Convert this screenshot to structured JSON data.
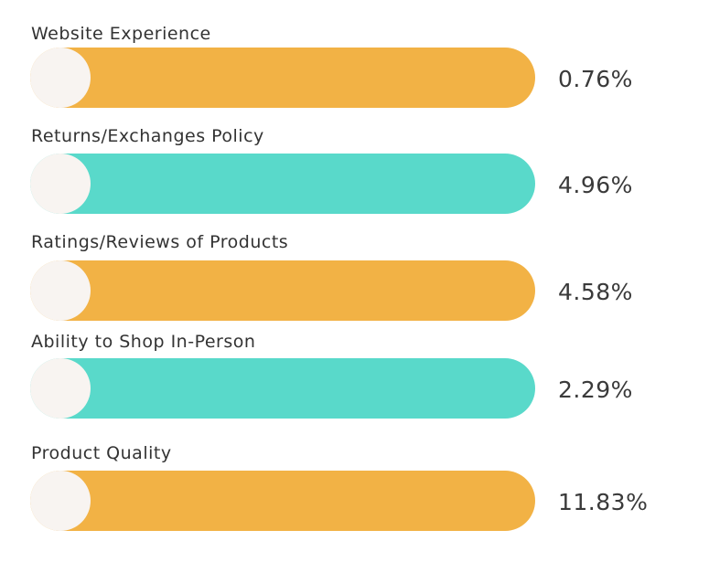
{
  "chart_data": {
    "type": "bar",
    "categories": [
      "Website Experience",
      "Returns/Exchanges Policy",
      "Ratings/Reviews of Products",
      "Ability to Shop In-Person",
      "Product Quality"
    ],
    "values": [
      0.76,
      4.96,
      4.58,
      2.29,
      11.83
    ],
    "value_labels": [
      "0.76%",
      "4.96%",
      "4.58%",
      "2.29%",
      "11.83%"
    ],
    "unit": "%",
    "colors": [
      "#f2b245",
      "#59d9ca",
      "#f2b245",
      "#59d9ca",
      "#f2b245"
    ],
    "knob_color": "#f8f4f1",
    "grid": false,
    "legend": "none"
  }
}
